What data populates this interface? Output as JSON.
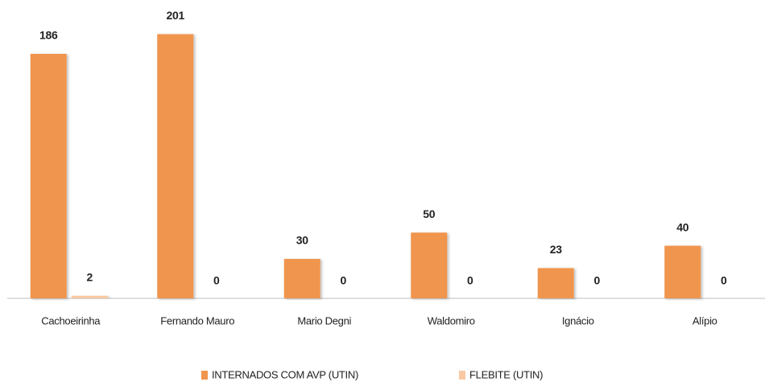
{
  "chart_data": {
    "type": "bar",
    "categories": [
      "Cachoeirinha",
      "Fernando Mauro",
      "Mario Degni",
      "Waldomiro",
      "Ignácio",
      "Alípio"
    ],
    "series": [
      {
        "name": "INTERNADOS COM AVP (UTIN)",
        "color": "#f0954e",
        "values": [
          186,
          201,
          30,
          50,
          23,
          40
        ]
      },
      {
        "name": "FLEBITE (UTIN)",
        "color": "#f9c9a3",
        "values": [
          2,
          0,
          0,
          0,
          0,
          0
        ]
      }
    ],
    "ylim": [
      0,
      220
    ]
  }
}
